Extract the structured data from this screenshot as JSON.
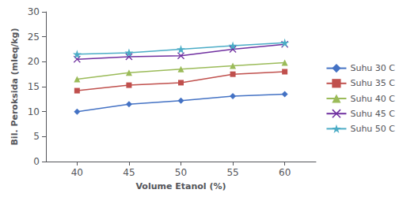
{
  "chart_data": {
    "type": "line",
    "x": [
      40,
      45,
      50,
      55,
      60
    ],
    "series": [
      {
        "name": "Suhu 30 C",
        "values": [
          10.0,
          11.5,
          12.2,
          13.1,
          13.5
        ],
        "color": "#4472C4",
        "marker": "diamond"
      },
      {
        "name": "Suhu 35 C",
        "values": [
          14.2,
          15.3,
          15.8,
          17.5,
          18.0
        ],
        "color": "#C0504D",
        "marker": "square"
      },
      {
        "name": "Suhu 40 C",
        "values": [
          16.5,
          17.8,
          18.5,
          19.2,
          19.8
        ],
        "color": "#9BBB59",
        "marker": "triangle"
      },
      {
        "name": "Suhu 45 C",
        "values": [
          20.5,
          21.0,
          21.2,
          22.5,
          23.5
        ],
        "color": "#7030A0",
        "marker": "x"
      },
      {
        "name": "Suhu 50 C",
        "values": [
          21.5,
          21.8,
          22.5,
          23.2,
          23.8
        ],
        "color": "#4BACC6",
        "marker": "star"
      }
    ],
    "xlabel": "Volume Etanol (%)",
    "ylabel": "Bil. Peroksida (mleq/kg)",
    "xlim": [
      37,
      63
    ],
    "xticks": [
      40,
      45,
      50,
      55,
      60
    ],
    "ylim": [
      0,
      30
    ],
    "yticks": [
      0,
      5,
      10,
      15,
      20,
      25,
      30
    ],
    "grid": false,
    "legend": "right"
  }
}
